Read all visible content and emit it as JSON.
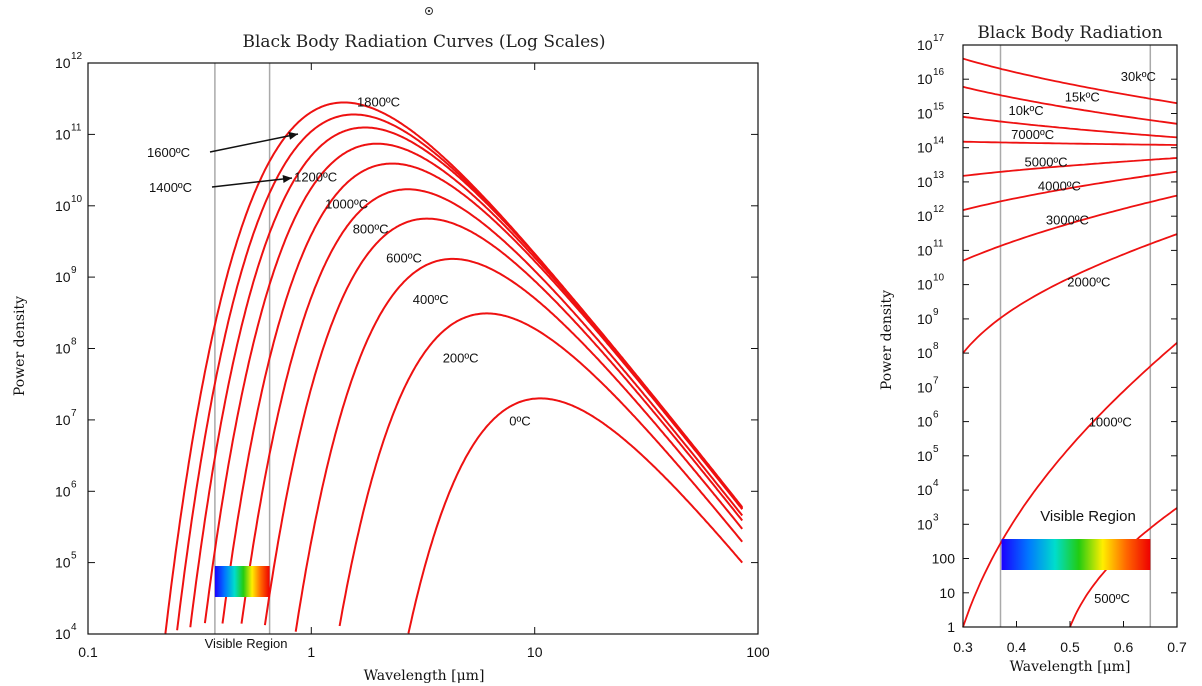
{
  "chart_data": [
    {
      "type": "line",
      "title": "Black Body Radiation Curves (Log Scales)",
      "xlabel": "Wavelength [μm]",
      "ylabel": "Power density",
      "x_scale": "log",
      "y_scale": "log",
      "xlim": [
        0.1,
        100
      ],
      "ylim": [
        10000,
        1000000000000
      ],
      "x_tick_labels": [
        "0.1",
        "1",
        "10",
        "100"
      ],
      "y_tick_labels": [
        {
          "base": "10",
          "exp": "4"
        },
        {
          "base": "10",
          "exp": "5"
        },
        {
          "base": "10",
          "exp": "6"
        },
        {
          "base": "10",
          "exp": "7"
        },
        {
          "base": "10",
          "exp": "8"
        },
        {
          "base": "10",
          "exp": "9"
        },
        {
          "base": "10",
          "exp": "10"
        },
        {
          "base": "10",
          "exp": "11"
        },
        {
          "base": "10",
          "exp": "12"
        }
      ],
      "visible_region": {
        "label": "Visible Region",
        "range": [
          0.37,
          0.65
        ]
      },
      "series": [
        {
          "name": "0ºC",
          "peak_x": 10.6,
          "peak_y": 20000000
        },
        {
          "name": "200ºC",
          "peak_x": 6.1,
          "peak_y": 310000000
        },
        {
          "name": "400ºC",
          "peak_x": 4.3,
          "peak_y": 1800000000
        },
        {
          "name": "600ºC",
          "peak_x": 3.3,
          "peak_y": 6600000000
        },
        {
          "name": "800ºC",
          "peak_x": 2.7,
          "peak_y": 17000000000
        },
        {
          "name": "1000ºC",
          "peak_x": 2.3,
          "peak_y": 39000000000
        },
        {
          "name": "1200ºC",
          "peak_x": 1.97,
          "peak_y": 74000000000
        },
        {
          "name": "1400ºC",
          "peak_x": 1.74,
          "peak_y": 125000000000
        },
        {
          "name": "1600ºC",
          "peak_x": 1.55,
          "peak_y": 190000000000
        },
        {
          "name": "1800ºC",
          "peak_x": 1.4,
          "peak_y": 280000000000
        }
      ],
      "annotations": [
        "1600ºC",
        "1400ºC"
      ]
    },
    {
      "type": "line",
      "title": "Black Body Radiation",
      "xlabel": "Wavelength [μm]",
      "ylabel": "Power density",
      "x_scale": "linear",
      "y_scale": "log",
      "xlim": [
        0.3,
        0.7
      ],
      "ylim": [
        1,
        100000000000000000
      ],
      "x_tick_labels": [
        "0.3",
        "0.4",
        "0.5",
        "0.6",
        "0.7"
      ],
      "y_tick_labels": [
        {
          "base": "1",
          "exp": ""
        },
        {
          "base": "10",
          "exp": ""
        },
        {
          "base": "100",
          "exp": ""
        },
        {
          "base": "10",
          "exp": "3"
        },
        {
          "base": "10",
          "exp": "4"
        },
        {
          "base": "10",
          "exp": "5"
        },
        {
          "base": "10",
          "exp": "6"
        },
        {
          "base": "10",
          "exp": "7"
        },
        {
          "base": "10",
          "exp": "8"
        },
        {
          "base": "10",
          "exp": "9"
        },
        {
          "base": "10",
          "exp": "10"
        },
        {
          "base": "10",
          "exp": "11"
        },
        {
          "base": "10",
          "exp": "12"
        },
        {
          "base": "10",
          "exp": "13"
        },
        {
          "base": "10",
          "exp": "14"
        },
        {
          "base": "10",
          "exp": "15"
        },
        {
          "base": "10",
          "exp": "16"
        },
        {
          "base": "10",
          "exp": "17"
        }
      ],
      "visible_region": {
        "label": "Visible  Region",
        "range": [
          0.37,
          0.65
        ]
      },
      "series": [
        {
          "name": "500ºC",
          "x": [
            0.5,
            0.7
          ],
          "y": [
            1,
            3000
          ]
        },
        {
          "name": "1000ºC",
          "x": [
            0.3,
            0.7
          ],
          "y": [
            1,
            200000000
          ]
        },
        {
          "name": "2000ºC",
          "x": [
            0.3,
            0.7
          ],
          "y": [
            100000000,
            300000000000
          ]
        },
        {
          "name": "3000ºC",
          "x": [
            0.3,
            0.7
          ],
          "y": [
            50000000000,
            4000000000000
          ]
        },
        {
          "name": "4000ºC",
          "x": [
            0.3,
            0.7
          ],
          "y": [
            1500000000000,
            20000000000000
          ]
        },
        {
          "name": "5000ºC",
          "x": [
            0.3,
            0.7
          ],
          "y": [
            15000000000000,
            50000000000000
          ]
        },
        {
          "name": "7000ºC",
          "x": [
            0.3,
            0.7
          ],
          "y": [
            150000000000000,
            120000000000000
          ]
        },
        {
          "name": "10kºC",
          "x": [
            0.3,
            0.7
          ],
          "y": [
            800000000000000,
            200000000000000
          ]
        },
        {
          "name": "15kºC",
          "x": [
            0.3,
            0.7
          ],
          "y": [
            6000000000000000,
            500000000000000
          ]
        },
        {
          "name": "30kºC",
          "x": [
            0.3,
            0.7
          ],
          "y": [
            40000000000000000,
            2000000000000000
          ]
        }
      ]
    }
  ]
}
